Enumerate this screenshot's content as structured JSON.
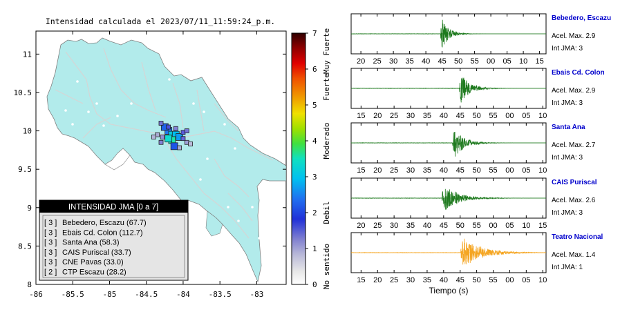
{
  "header": {
    "title": "Intensidad calculada el 2023/07/11_11:59:24_p.m."
  },
  "colors": {
    "land": "#b2ebeb",
    "border": "#7f7f7f",
    "road": "#d9d9d9",
    "station_label": "#0000cc",
    "trace_green": "#1e7a1e",
    "trace_orange": "#f5a623"
  },
  "colorbar": {
    "ticks": [
      "0",
      "1",
      "2",
      "3",
      "4",
      "5",
      "6",
      "7"
    ],
    "categories": [
      "No sentido",
      "Debil",
      "Moderado",
      "Fuerte",
      "Muy Fuerte"
    ],
    "category_center_values": [
      0.5,
      2,
      4,
      5.5,
      6.5
    ]
  },
  "legend": {
    "title": "INTENSIDAD JMA [0 a 7]",
    "items": [
      {
        "jma": "[ 3 ]",
        "name": "Bebedero, Escazu (67.7)"
      },
      {
        "jma": "[ 3 ]",
        "name": "Ebais Cd. Colon (112.7)"
      },
      {
        "jma": "[ 3 ]",
        "name": "Santa Ana (58.3)"
      },
      {
        "jma": "[ 3 ]",
        "name": "CAIS Puriscal (33.7)"
      },
      {
        "jma": "[ 3 ]",
        "name": "CNE Pavas (33.0)"
      },
      {
        "jma": "[ 2 ]",
        "name": "CTP Escazu (28.2)"
      }
    ]
  },
  "chart_data": [
    {
      "type": "heatmap",
      "title": "Intensidad calculada el 2023/07/11_11:59:24_p.m.",
      "xlim": [
        -86,
        -82.6
      ],
      "ylim": [
        8,
        11.3
      ],
      "x_ticks": [
        "-86",
        "-85.5",
        "-85",
        "-84.5",
        "-84",
        "-83.5",
        "-83"
      ],
      "x_tick_values": [
        -86,
        -85.5,
        -85,
        -84.5,
        -84,
        -83.5,
        -83
      ],
      "y_ticks": [
        "8",
        "8.5",
        "9",
        "9.5",
        "10",
        "10.5",
        "11"
      ],
      "y_tick_values": [
        8,
        8.5,
        9,
        9.5,
        10,
        10.5,
        11
      ],
      "color_scale": [
        0,
        7
      ],
      "cells": [
        {
          "lon": -84.2,
          "lat": 10.0,
          "value": 2.6
        },
        {
          "lon": -84.15,
          "lat": 9.95,
          "value": 3.2
        },
        {
          "lon": -84.1,
          "lat": 9.95,
          "value": 3.0
        },
        {
          "lon": -84.15,
          "lat": 9.88,
          "value": 3.6
        },
        {
          "lon": -84.2,
          "lat": 9.9,
          "value": 3.4
        },
        {
          "lon": -84.12,
          "lat": 9.8,
          "value": 2.3
        },
        {
          "lon": -84.25,
          "lat": 10.05,
          "value": 2.4
        },
        {
          "lon": -84.05,
          "lat": 9.92,
          "value": 2.8
        },
        {
          "lon": -84.0,
          "lat": 9.98,
          "value": 1.6
        },
        {
          "lon": -83.95,
          "lat": 10.0,
          "value": 1.4
        },
        {
          "lon": -84.3,
          "lat": 10.1,
          "value": 1.4
        },
        {
          "lon": -84.35,
          "lat": 9.95,
          "value": 1.0
        },
        {
          "lon": -84.28,
          "lat": 9.92,
          "value": 1.2
        },
        {
          "lon": -84.4,
          "lat": 9.92,
          "value": 0.9
        },
        {
          "lon": -84.05,
          "lat": 9.78,
          "value": 1.0
        },
        {
          "lon": -83.95,
          "lat": 9.85,
          "value": 1.1
        },
        {
          "lon": -83.9,
          "lat": 9.83,
          "value": 0.8
        },
        {
          "lon": -84.3,
          "lat": 9.85,
          "value": 1.3
        },
        {
          "lon": -84.0,
          "lat": 9.9,
          "value": 1.5
        },
        {
          "lon": -84.2,
          "lat": 10.05,
          "value": 1.7
        },
        {
          "lon": -84.1,
          "lat": 10.03,
          "value": 1.3
        }
      ]
    },
    {
      "type": "line",
      "name": "Bebedero, Escazu",
      "accel_label": "Acel. Max. 2.9",
      "int_label": "Int JMA: 3",
      "x_ticks": [
        "20",
        "25",
        "30",
        "35",
        "40",
        "45",
        "50",
        "55",
        "00",
        "05",
        "10",
        "15"
      ],
      "x_tick_values": [
        20,
        25,
        30,
        35,
        40,
        45,
        50,
        55,
        60,
        65,
        70,
        75
      ],
      "xlim": [
        17,
        77
      ],
      "onset": 44.5,
      "peak": 1.0,
      "decay": 2.2,
      "color": "#1e7a1e"
    },
    {
      "type": "line",
      "name": "Ebais Cd. Colon",
      "accel_label": "Acel. Max. 2.9",
      "int_label": "Int JMA: 3",
      "x_ticks": [
        "15",
        "20",
        "25",
        "30",
        "35",
        "40",
        "45",
        "50",
        "55",
        "00",
        "05",
        "10"
      ],
      "x_tick_values": [
        15,
        20,
        25,
        30,
        35,
        40,
        45,
        50,
        55,
        60,
        65,
        70
      ],
      "xlim": [
        12,
        71
      ],
      "onset": 44.8,
      "peak": 0.95,
      "decay": 2.8,
      "color": "#1e7a1e"
    },
    {
      "type": "line",
      "name": "Santa Ana",
      "accel_label": "Acel. Max. 2.7",
      "int_label": "Int JMA: 3",
      "x_ticks": [
        "15",
        "20",
        "25",
        "30",
        "35",
        "40",
        "45",
        "50",
        "55",
        "00",
        "05",
        "10"
      ],
      "x_tick_values": [
        15,
        20,
        25,
        30,
        35,
        40,
        45,
        50,
        55,
        60,
        65,
        70
      ],
      "xlim": [
        12,
        71
      ],
      "onset": 42.7,
      "peak": 1.0,
      "decay": 3.0,
      "color": "#1e7a1e"
    },
    {
      "type": "line",
      "name": "CAIS Puriscal",
      "accel_label": "Acel. Max. 2.6",
      "int_label": "Int JMA: 3",
      "x_ticks": [
        "20",
        "25",
        "30",
        "35",
        "40",
        "45",
        "50",
        "55",
        "00",
        "05",
        "10",
        "15"
      ],
      "x_tick_values": [
        20,
        25,
        30,
        35,
        40,
        45,
        50,
        55,
        60,
        65,
        70,
        75
      ],
      "xlim": [
        17,
        76
      ],
      "onset": 44.5,
      "peak": 0.85,
      "decay": 4.5,
      "color": "#1e7a1e"
    },
    {
      "type": "line",
      "name": "Teatro Nacional",
      "accel_label": "Acel. Max. 1.4",
      "int_label": "Int JMA: 1",
      "x_ticks": [
        "15",
        "20",
        "25",
        "30",
        "35",
        "40",
        "45",
        "50",
        "55",
        "00",
        "05",
        "10"
      ],
      "x_tick_values": [
        15,
        20,
        25,
        30,
        35,
        40,
        45,
        50,
        55,
        60,
        65,
        70
      ],
      "xlim": [
        12,
        71
      ],
      "onset": 45.2,
      "peak": 0.95,
      "decay": 5.5,
      "color": "#f5a623",
      "xlabel": "Tiempo (s)"
    }
  ]
}
